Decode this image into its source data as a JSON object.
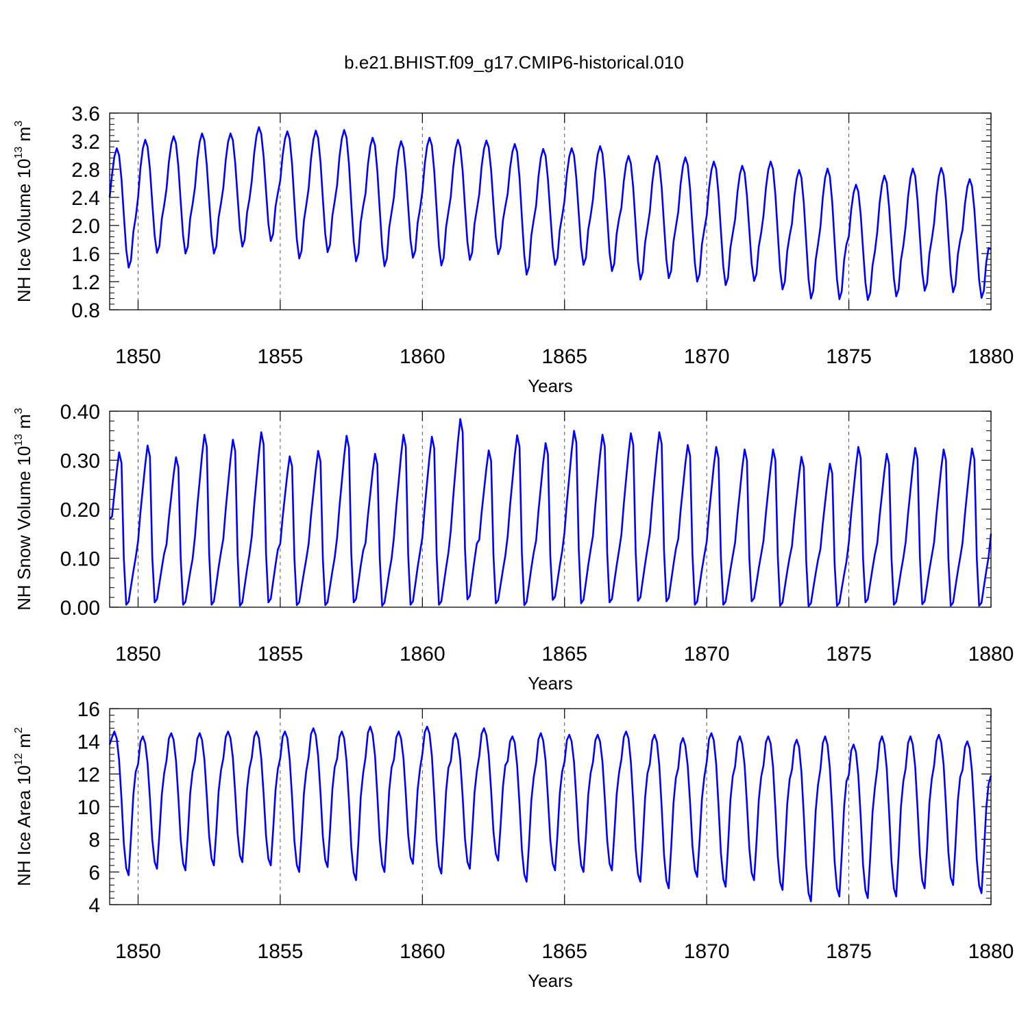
{
  "figure": {
    "title": "b.e21.BHIST.f09_g17.CMIP6-historical.010"
  },
  "chart_data": [
    {
      "type": "line",
      "ylabel": "NH Ice Volume 10",
      "ylabel_exp": "13",
      "ylabel_unit": " m",
      "ylabel_unit_exp": "3",
      "xlabel": "Years",
      "xlim": [
        1849.0,
        1880.0
      ],
      "ylim": [
        0.8,
        3.6
      ],
      "yticks": [
        0.8,
        1.2,
        1.6,
        2.0,
        2.4,
        2.8,
        3.2,
        3.6
      ],
      "ytick_labels": [
        "0.8",
        "1.2",
        "1.6",
        "2.0",
        "2.4",
        "2.8",
        "3.2",
        "3.6"
      ],
      "xticks": [
        1850,
        1855,
        1860,
        1865,
        1870,
        1875,
        1880
      ],
      "xtick_labels": [
        "1850",
        "1855",
        "1860",
        "1865",
        "1870",
        "1875",
        "1880"
      ],
      "grid_x": [
        1850,
        1855,
        1860,
        1865,
        1870,
        1875
      ],
      "start_value": 2.4,
      "end_value": 1.66,
      "peaks": [
        3.1,
        3.22,
        3.27,
        3.31,
        3.31,
        3.4,
        3.34,
        3.35,
        3.36,
        3.25,
        3.2,
        3.25,
        3.22,
        3.21,
        3.16,
        3.09,
        3.1,
        3.13,
        2.99,
        2.99,
        2.97,
        2.91,
        2.85,
        2.91,
        2.79,
        2.81,
        2.58,
        2.71,
        2.81,
        2.82,
        2.66
      ],
      "troughs": [
        1.4,
        1.61,
        1.6,
        1.6,
        1.7,
        1.78,
        1.53,
        1.62,
        1.49,
        1.42,
        1.54,
        1.43,
        1.51,
        1.59,
        1.3,
        1.44,
        1.44,
        1.35,
        1.23,
        1.25,
        1.2,
        1.15,
        1.21,
        1.09,
        0.96,
        0.95,
        0.94,
        0.99,
        1.07,
        1.05,
        0.97
      ],
      "series": [
        {
          "color": "#0000ff"
        }
      ]
    },
    {
      "type": "line",
      "ylabel": "NH Snow Volume 10",
      "ylabel_exp": "13",
      "ylabel_unit": " m",
      "ylabel_unit_exp": "3",
      "xlabel": "Years",
      "xlim": [
        1849.0,
        1880.0
      ],
      "ylim": [
        0.0,
        0.4
      ],
      "yticks": [
        0.0,
        0.1,
        0.2,
        0.3,
        0.4
      ],
      "ytick_labels": [
        "0.00",
        "0.10",
        "0.20",
        "0.30",
        "0.40"
      ],
      "xticks": [
        1850,
        1855,
        1860,
        1865,
        1870,
        1875,
        1880
      ],
      "xtick_labels": [
        "1850",
        "1855",
        "1860",
        "1865",
        "1870",
        "1875",
        "1880"
      ],
      "grid_x": [
        1850,
        1855,
        1860,
        1865,
        1870,
        1875
      ],
      "start_value": 0.18,
      "end_value": 0.15,
      "peaks": [
        0.316,
        0.33,
        0.306,
        0.352,
        0.342,
        0.357,
        0.308,
        0.319,
        0.35,
        0.313,
        0.352,
        0.348,
        0.384,
        0.32,
        0.351,
        0.335,
        0.36,
        0.352,
        0.355,
        0.357,
        0.331,
        0.327,
        0.322,
        0.322,
        0.307,
        0.293,
        0.327,
        0.313,
        0.325,
        0.322,
        0.324
      ],
      "troughs": [
        0.005,
        0.01,
        0.005,
        0.005,
        0.003,
        0.01,
        0.004,
        0.004,
        0.01,
        0.003,
        0.005,
        0.005,
        0.016,
        0.008,
        0.004,
        0.015,
        0.008,
        0.01,
        0.013,
        0.012,
        0.005,
        0.005,
        0.012,
        0.003,
        0.002,
        0.003,
        0.01,
        0.005,
        0.006,
        0.003,
        0.003
      ],
      "series": [
        {
          "color": "#0000ff"
        }
      ]
    },
    {
      "type": "line",
      "ylabel": "NH Ice Area 10",
      "ylabel_exp": "12",
      "ylabel_unit": " m",
      "ylabel_unit_exp": "2",
      "xlabel": "Years",
      "xlim": [
        1849.0,
        1880.0
      ],
      "ylim": [
        4,
        16
      ],
      "yticks": [
        4,
        6,
        8,
        10,
        12,
        14,
        16
      ],
      "ytick_labels": [
        "4",
        "6",
        "8",
        "10",
        "12",
        "14",
        "16"
      ],
      "xticks": [
        1850,
        1855,
        1860,
        1865,
        1870,
        1875,
        1880
      ],
      "xtick_labels": [
        "1850",
        "1855",
        "1860",
        "1865",
        "1870",
        "1875",
        "1880"
      ],
      "grid_x": [
        1850,
        1855,
        1860,
        1865,
        1870,
        1875
      ],
      "start_value": 13.8,
      "end_value": 11.9,
      "peaks": [
        14.6,
        14.3,
        14.5,
        14.5,
        14.6,
        14.6,
        14.6,
        14.8,
        14.6,
        14.9,
        14.6,
        14.9,
        14.5,
        14.8,
        14.3,
        14.5,
        14.4,
        14.4,
        14.6,
        14.4,
        14.2,
        14.5,
        14.3,
        14.3,
        14.1,
        14.3,
        13.8,
        14.3,
        14.3,
        14.4,
        14.0
      ],
      "troughs": [
        5.8,
        6.2,
        6.1,
        6.4,
        6.6,
        6.4,
        6.0,
        6.3,
        5.5,
        6.0,
        6.5,
        5.9,
        6.2,
        6.7,
        5.4,
        6.1,
        6.0,
        6.1,
        5.4,
        5.0,
        5.7,
        5.1,
        5.5,
        4.9,
        4.2,
        4.5,
        4.4,
        4.5,
        5.0,
        5.2,
        4.7
      ],
      "series": [
        {
          "color": "#0000ff"
        }
      ]
    }
  ]
}
